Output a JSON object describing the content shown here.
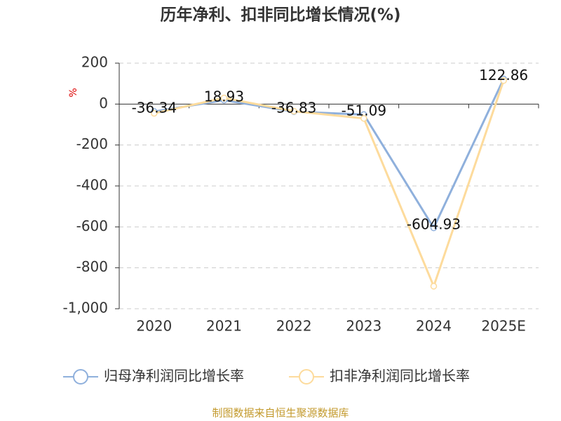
{
  "chart_data": {
    "type": "line",
    "title": "历年净利、扣非同比增长情况(%)",
    "y_label": "%",
    "categories": [
      "2020",
      "2021",
      "2022",
      "2023",
      "2024",
      "2025E"
    ],
    "series": [
      {
        "name": "归母净利润同比增长率",
        "color": "#8fb0dc",
        "values": [
          -36.34,
          18.93,
          -36.83,
          -51.09,
          -604.93,
          122.86
        ],
        "data_labels": true
      },
      {
        "name": "扣非净利润同比增长率",
        "color": "#fddb9c",
        "values": [
          -45,
          30,
          -35,
          -70,
          -890,
          115
        ],
        "data_labels": false
      }
    ],
    "ylim": [
      -1000,
      200
    ],
    "yticks": [
      {
        "value": -1000,
        "label": "-1,000"
      },
      -800,
      -600,
      -400,
      -200,
      0,
      200
    ],
    "grid": true,
    "source": "制图数据来自恒生聚源数据库"
  }
}
